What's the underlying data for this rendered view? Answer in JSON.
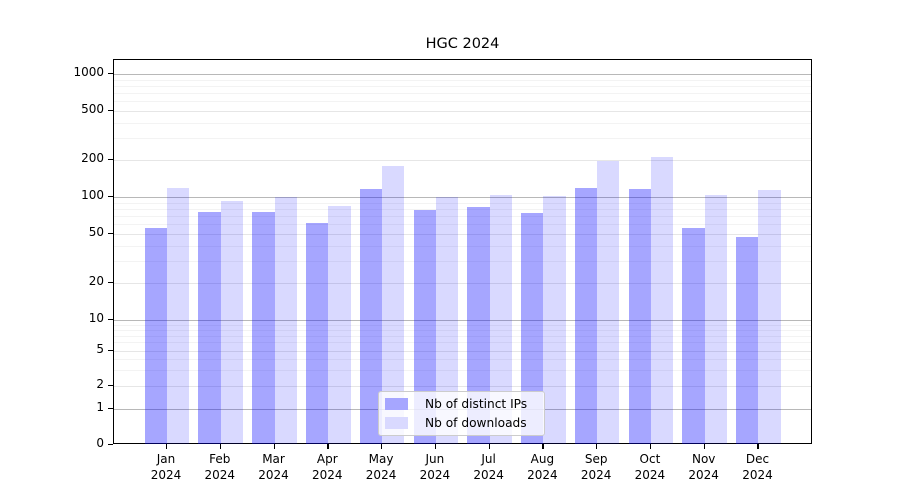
{
  "title": "HGC 2024",
  "chart_data": {
    "type": "bar",
    "title": "HGC 2024",
    "categories": [
      "Jan 2024",
      "Feb 2024",
      "Mar 2024",
      "Apr 2024",
      "May 2024",
      "Jun 2024",
      "Jul 2024",
      "Aug 2024",
      "Sep 2024",
      "Oct 2024",
      "Nov 2024",
      "Dec 2024"
    ],
    "series": [
      {
        "name": "Nb of distinct IPs",
        "color": "#a6a6ff",
        "fill": "rgba(0,0,255,0.35)",
        "values": [
          56,
          75,
          75,
          61,
          117,
          79,
          83,
          74,
          119,
          117,
          56,
          47
        ]
      },
      {
        "name": "Nb of downloads",
        "color": "#d9d9ff",
        "fill": "rgba(0,0,255,0.15)",
        "values": [
          118,
          92,
          100,
          84,
          180,
          100,
          104,
          101,
          196,
          213,
          104,
          115
        ]
      }
    ],
    "xlabel": "",
    "ylabel": "",
    "yscale": "symlog",
    "yticks": [
      0,
      1,
      2,
      5,
      10,
      20,
      50,
      100,
      200,
      500,
      1000
    ],
    "ylim": [
      0,
      1300
    ],
    "grid": "both",
    "legend_position": "lower center"
  }
}
